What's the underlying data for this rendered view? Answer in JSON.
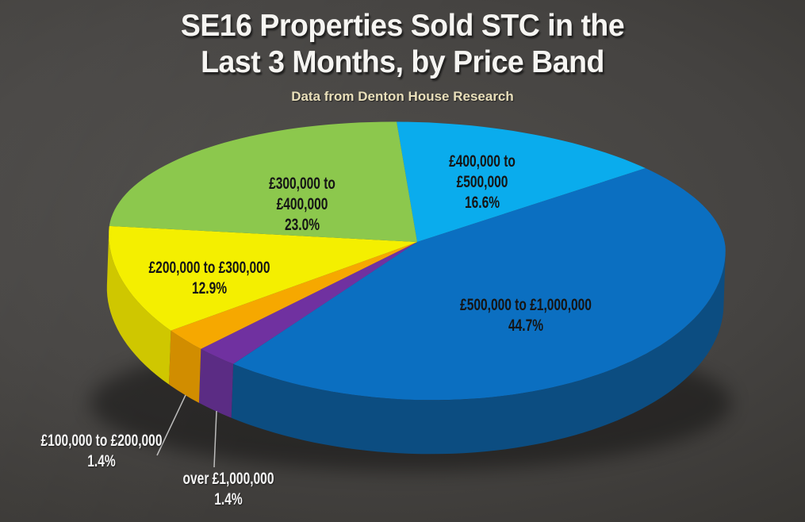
{
  "header": {
    "title_line1": "SE16 Properties Sold STC in the",
    "title_line2": "Last 3 Months, by Price Band",
    "subtitle": "Data from Denton House Research"
  },
  "chart_data": {
    "type": "pie",
    "style": "3d-pie",
    "title": "SE16 Properties Sold STC in the Last 3 Months, by Price Band",
    "subtitle": "Data from Denton House Research",
    "legend_position": "none",
    "start_angle_deg": -4.6,
    "categories": [
      "£400,000 to £500,000",
      "£500,000 to £1,000,000",
      "over £1,000,000",
      "£100,000 to £200,000",
      "£200,000 to £300,000",
      "£300,000 to £400,000"
    ],
    "values": [
      16.6,
      44.7,
      1.4,
      1.4,
      12.9,
      23.0
    ],
    "slices": [
      {
        "label": "£400,000 to £500,000",
        "pct": 16.6,
        "pct_label": "16.6%",
        "color": "#0aaced",
        "side_color": "#0782b4",
        "display_arc_deg": 51.6,
        "label_style": "on-slice-dark",
        "label_lines": [
          "£400,000 to",
          "£500,000",
          "16.6%"
        ]
      },
      {
        "label": "£500,000 to £1,000,000",
        "pct": 44.7,
        "pct_label": "44.7%",
        "color": "#0b6fc1",
        "side_color": "#0c4d81",
        "display_arc_deg": 168.6,
        "label_style": "on-slice-dark",
        "label_lines": [
          "£500,000 to £1,000,000",
          "44.7%"
        ]
      },
      {
        "label": "over £1,000,000",
        "pct": 1.4,
        "pct_label": "1.4%",
        "color": "#7031a0",
        "side_color": "#5b2c84",
        "display_arc_deg": 7.9,
        "label_style": "outside-light",
        "label_lines": [
          "over £1,000,000",
          "1.4%"
        ]
      },
      {
        "label": "£100,000 to £200,000",
        "pct": 1.4,
        "pct_label": "1.4%",
        "color": "#f6a800",
        "side_color": "#d18d00",
        "display_arc_deg": 8.5,
        "label_style": "outside-light",
        "label_lines": [
          "£100,000 to £200,000",
          "1.4%"
        ]
      },
      {
        "label": "£200,000 to £300,000",
        "pct": 12.9,
        "pct_label": "12.9%",
        "color": "#f4ef00",
        "side_color": "#cfc700",
        "display_arc_deg": 40.5,
        "label_style": "on-slice-dark",
        "label_lines": [
          "£200,000 to £300,000",
          "12.9%"
        ]
      },
      {
        "label": "£300,000 to £400,000",
        "pct": 23.0,
        "pct_label": "23.0%",
        "color": "#8cc84d",
        "side_color": "#6f9e3c",
        "display_arc_deg": 82.9,
        "label_style": "on-slice-dark",
        "label_lines": [
          "£300,000 to",
          "£400,000",
          "23.0%"
        ]
      }
    ]
  }
}
